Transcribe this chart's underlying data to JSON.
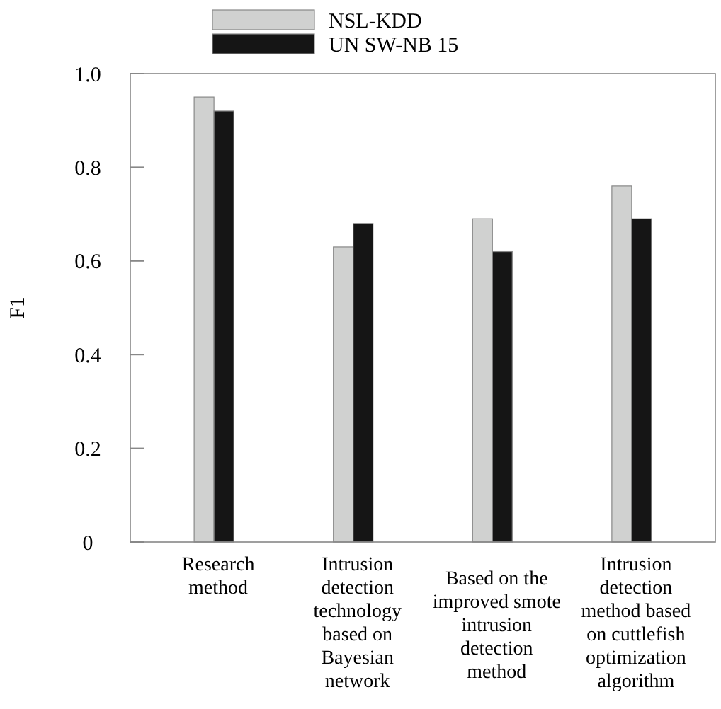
{
  "chart_data": {
    "type": "bar",
    "ylabel": "F1",
    "categories": [
      "Research method",
      "Intrusion detection technology based on Bayesian network",
      "Based on the improved smote intrusion detection method",
      "Intrusion detection method based on cuttlefish optimization algorithm"
    ],
    "series": [
      {
        "name": "NSL-KDD",
        "color": "#d0d1d0",
        "values": [
          0.95,
          0.63,
          0.69,
          0.76
        ]
      },
      {
        "name": "UN SW-NB 15",
        "color": "#151515",
        "values": [
          0.92,
          0.68,
          0.62,
          0.69
        ]
      }
    ],
    "ylim": [
      0,
      1
    ],
    "yticks": [
      {
        "value": 0,
        "label": "0"
      },
      {
        "value": 0.2,
        "label": "0.2"
      },
      {
        "value": 0.4,
        "label": "0.4"
      },
      {
        "value": 0.6,
        "label": "0.6"
      },
      {
        "value": 0.8,
        "label": "0.8"
      },
      {
        "value": 1,
        "label": "1.0"
      }
    ],
    "grid": false,
    "legend": "top"
  }
}
